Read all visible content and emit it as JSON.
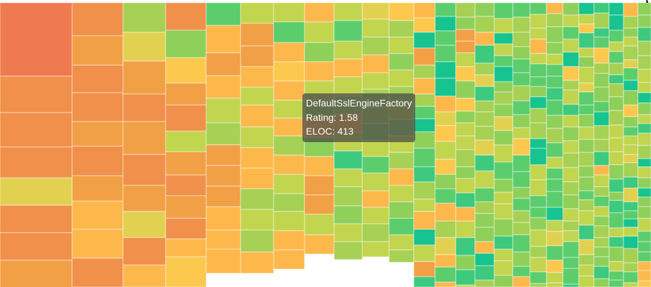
{
  "chart_data": {
    "type": "treemap",
    "title": "",
    "color_metric": "Rating",
    "size_metric": "ELOC",
    "color_scale": [
      "#f07a50",
      "#f2a045",
      "#fdc84e",
      "#c2d54f",
      "#5ccd6d",
      "#17c38f"
    ],
    "tooltip": {
      "name": "DefaultSslEngineFactory",
      "rating_label": "Rating: 1.58",
      "eloc_label": "ELOC: 413"
    }
  }
}
